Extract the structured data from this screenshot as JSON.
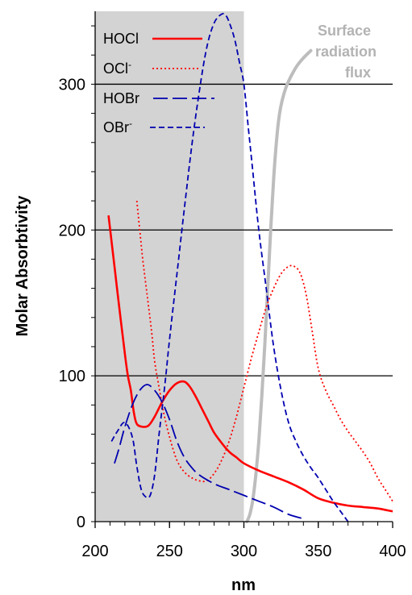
{
  "chart_data": {
    "type": "line",
    "xlabel": "nm",
    "ylabel": "Molar Absorbtivity",
    "xlim": [
      200,
      400
    ],
    "ylim": [
      0,
      350
    ],
    "x_ticks": [
      "200",
      "250",
      "300",
      "350",
      "400"
    ],
    "y_ticks": [
      "0",
      "100",
      "200",
      "300"
    ],
    "y_tick_values": [
      0,
      100,
      200,
      300
    ],
    "x_tick_values": [
      200,
      250,
      300,
      350,
      400
    ],
    "grid": "horizontal",
    "shaded_region": {
      "x_from": 200,
      "x_to": 300,
      "color": "#d3d3d3"
    },
    "legend_position": "top-left",
    "series": [
      {
        "name": "HOCl",
        "name_superscript": "",
        "color": "#ff0000",
        "dash": "solid",
        "x": [
          209,
          213,
          217,
          220,
          222,
          224,
          226,
          228,
          232,
          236,
          240,
          245,
          250,
          255,
          260,
          264,
          268,
          272,
          276,
          280,
          285,
          290,
          295,
          300,
          310,
          320,
          330,
          340,
          350,
          360,
          370,
          380,
          390,
          400
        ],
        "y": [
          210,
          175,
          140,
          115,
          100,
          90,
          75,
          67,
          65,
          66,
          72,
          82,
          90,
          95,
          96,
          92,
          85,
          77,
          69,
          61,
          54,
          48,
          44,
          40,
          35,
          31,
          27,
          22,
          16,
          13,
          11,
          10,
          9,
          7
        ]
      },
      {
        "name": "OCl",
        "name_superscript": "-",
        "color": "#ff0000",
        "dash": "dotted",
        "x": [
          228,
          230,
          232,
          235,
          238,
          240,
          243,
          246,
          250,
          255,
          260,
          265,
          270,
          275,
          280,
          285,
          290,
          295,
          300,
          305,
          310,
          315,
          320,
          325,
          330,
          334,
          338,
          342,
          346,
          350,
          355,
          360,
          365,
          370,
          375,
          380,
          385,
          390,
          395,
          400
        ],
        "y": [
          220,
          200,
          180,
          155,
          130,
          110,
          92,
          75,
          58,
          42,
          34,
          30,
          28,
          28,
          33,
          42,
          55,
          72,
          92,
          112,
          130,
          147,
          160,
          170,
          175,
          175,
          170,
          155,
          130,
          105,
          90,
          80,
          70,
          62,
          55,
          48,
          40,
          30,
          22,
          14
        ]
      },
      {
        "name": "HOBr",
        "name_superscript": "",
        "color": "#0000b0",
        "dash": "longdash",
        "x": [
          213,
          216,
          220,
          225,
          230,
          235,
          240,
          245,
          250,
          255,
          260,
          265,
          270,
          280,
          290,
          300,
          310,
          320,
          330,
          340
        ],
        "y": [
          40,
          50,
          65,
          80,
          90,
          94,
          90,
          82,
          70,
          55,
          44,
          37,
          32,
          26,
          22,
          18,
          14,
          10,
          5,
          2
        ]
      },
      {
        "name": "OBr",
        "name_superscript": "-",
        "color": "#0000b0",
        "dash": "dashed",
        "x": [
          211,
          215,
          220,
          225,
          228,
          231,
          234,
          237,
          240,
          243,
          247,
          250,
          255,
          260,
          265,
          270,
          275,
          280,
          285,
          288,
          291,
          294,
          297,
          300,
          303,
          306,
          310,
          315,
          320,
          325,
          330,
          335,
          340,
          345,
          350,
          355,
          360,
          365,
          370
        ],
        "y": [
          55,
          62,
          68,
          58,
          38,
          22,
          17,
          18,
          32,
          60,
          95,
          125,
          170,
          215,
          258,
          295,
          325,
          342,
          348,
          347,
          340,
          330,
          315,
          300,
          270,
          240,
          200,
          160,
          120,
          90,
          68,
          55,
          45,
          37,
          30,
          22,
          14,
          7,
          0
        ]
      }
    ],
    "annotation": {
      "lines": [
        "Surface",
        "radiation",
        "flux"
      ],
      "curve": {
        "name": "Surface radiation flux",
        "color": "#bdbdbd",
        "x": [
          302,
          304,
          306,
          308,
          310,
          312,
          314,
          316,
          318,
          320,
          322,
          324,
          326,
          328,
          330,
          333,
          336,
          340,
          345
        ],
        "y": [
          0,
          5,
          15,
          32,
          55,
          85,
          120,
          160,
          200,
          235,
          262,
          280,
          290,
          297,
          302,
          308,
          313,
          318,
          323
        ]
      }
    }
  }
}
